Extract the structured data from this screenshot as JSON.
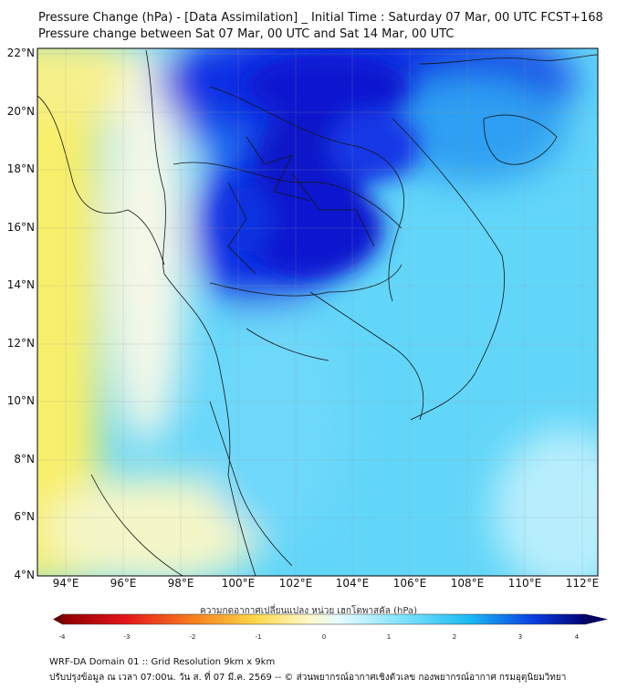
{
  "title": {
    "line1": "Pressure Change (hPa) - [Data Assimilation] _ Initial Time : Saturday 07 Mar, 00 UTC FCST+168",
    "line2": "Pressure change between Sat 07 Mar, 00 UTC and Sat 14 Mar, 00 UTC"
  },
  "map": {
    "lat_labels": [
      "22°N",
      "20°N",
      "18°N",
      "16°N",
      "14°N",
      "12°N",
      "10°N",
      "8°N",
      "6°N",
      "4°N"
    ],
    "lon_labels": [
      "94°E",
      "96°E",
      "98°E",
      "100°E",
      "102°E",
      "104°E",
      "106°E",
      "108°E",
      "110°E",
      "112°E"
    ],
    "lat_range": [
      4,
      22
    ],
    "lon_range": [
      93.2,
      112.8
    ],
    "field_colors": {
      "strong_rise": "#0a14d8",
      "moderate_rise": "#1fb6f2",
      "weak_rise": "#7fe0fb",
      "neutral": "#f4f8e8",
      "fall": "#f8ef6a"
    }
  },
  "colorbar": {
    "title": "ความกดอากาศเปลี่ยนแปลง หน่วย เฮกโตพาสคัล (hPa)",
    "ticks": [
      "-4",
      "-3",
      "-2",
      "-1",
      "0",
      "1",
      "2",
      "3",
      "4"
    ],
    "range": [
      -4,
      4
    ]
  },
  "footer": {
    "line1": "WRF-DA Domain 01 :: Grid Resolution 9km x 9km",
    "line2": "ปรับปรุงข้อมูล ณ เวลา 07:00น. วัน ส. ที่ 07 มี.ค. 2569 -- © ส่วนพยากรณ์อากาศเชิงตัวเลข กองพยากรณ์อากาศ กรมอุตุนิยมวิทยา"
  }
}
